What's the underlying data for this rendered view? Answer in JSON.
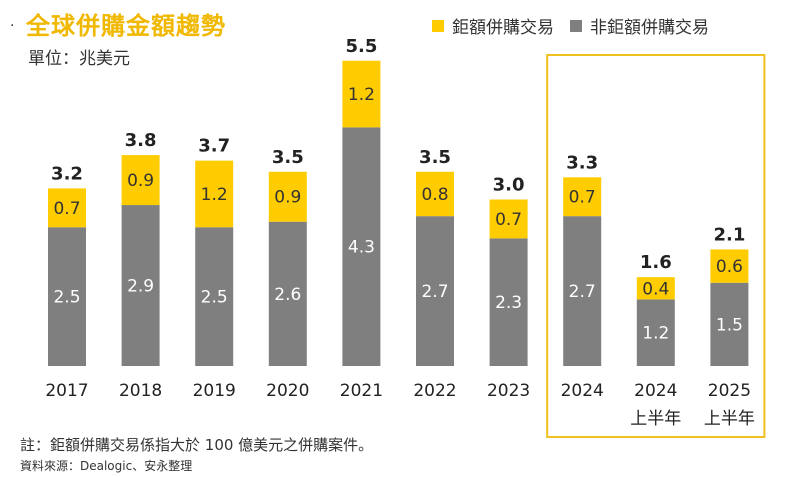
{
  "title": "全球併購金額趨勢",
  "bullet": "·",
  "unit_label": "單位：兆美元",
  "legend": {
    "large_label": "鉅額併購交易",
    "non_large_label": "非鉅額併購交易"
  },
  "colors": {
    "large": "#FFCC00",
    "non_large": "#7F7F7F",
    "highlight_box": "#F0C020",
    "title": "#F0B800"
  },
  "footnote": "註：鉅額併購交易係指大於 100 億美元之併購案件。",
  "source": "資料來源：Dealogic、安永整理",
  "chart_data": {
    "type": "bar",
    "stacked": true,
    "categories": [
      "2017",
      "2018",
      "2019",
      "2020",
      "2021",
      "2022",
      "2023",
      "2024",
      "2024",
      "2025"
    ],
    "category_sublabels": [
      "",
      "",
      "",
      "",
      "",
      "",
      "",
      "",
      "上半年",
      "上半年"
    ],
    "series": [
      {
        "name": "非鉅額併購交易",
        "values": [
          2.5,
          2.9,
          2.5,
          2.6,
          4.3,
          2.7,
          2.3,
          2.7,
          1.2,
          1.5
        ]
      },
      {
        "name": "鉅額併購交易",
        "values": [
          0.7,
          0.9,
          1.2,
          0.9,
          1.2,
          0.8,
          0.7,
          0.7,
          0.4,
          0.6
        ]
      }
    ],
    "totals": [
      "3.2",
      "3.8",
      "3.7",
      "3.5",
      "5.5",
      "3.5",
      "3.0",
      "3.3",
      "1.6",
      "2.1"
    ],
    "ylim": [
      0,
      5.5
    ],
    "grid": false,
    "legend_position": "top-right",
    "highlighted_categories": [
      7,
      8,
      9
    ]
  }
}
